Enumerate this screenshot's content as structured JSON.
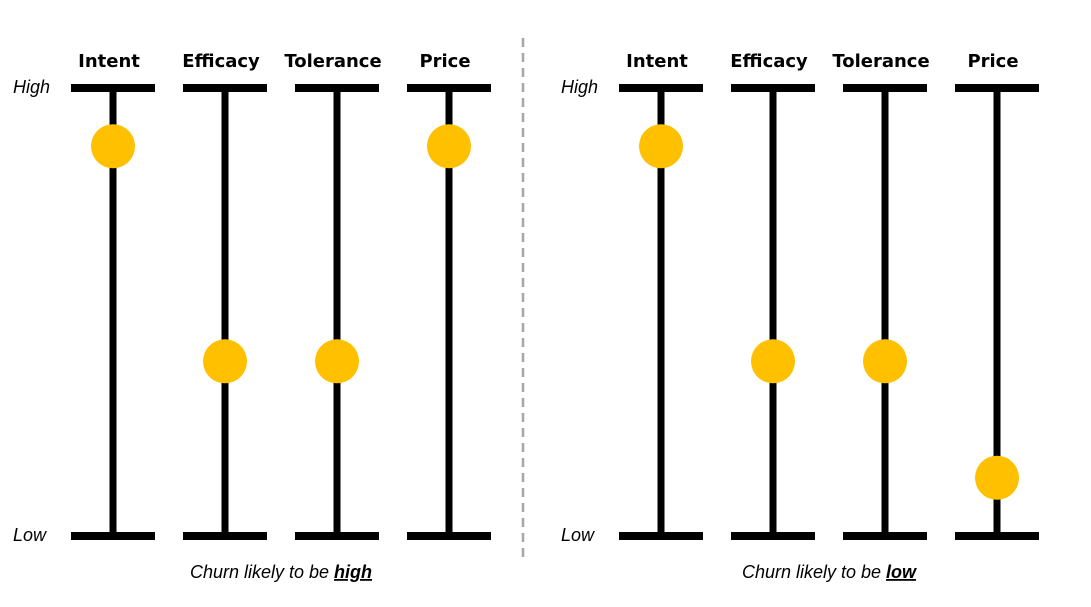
{
  "panels": [
    {
      "high_label": "High",
      "low_label": "Low",
      "caption": "Churn likely to be ",
      "caption_emphasis": "high",
      "axes": [
        {
          "label": "Intent",
          "value": 0.87
        },
        {
          "label": "Efficacy",
          "value": 0.39
        },
        {
          "label": "Tolerance",
          "value": 0.39
        },
        {
          "label": "Price",
          "value": 0.87
        }
      ]
    },
    {
      "high_label": "High",
      "low_label": "Low",
      "caption": "Churn likely to be ",
      "caption_emphasis": "low",
      "axes": [
        {
          "label": "Intent",
          "value": 0.87
        },
        {
          "label": "Efficacy",
          "value": 0.39
        },
        {
          "label": "Tolerance",
          "value": 0.39
        },
        {
          "label": "Price",
          "value": 0.13
        }
      ]
    }
  ]
}
